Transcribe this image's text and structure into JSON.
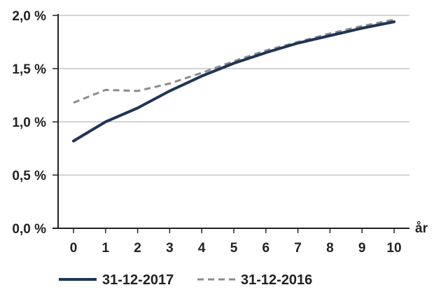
{
  "chart_data": {
    "type": "line",
    "x": [
      0,
      1,
      2,
      3,
      4,
      5,
      6,
      7,
      8,
      9,
      10
    ],
    "xlabel": "år",
    "ylim": [
      0,
      2.0
    ],
    "xlim": [
      0,
      10
    ],
    "y_tick_labels": [
      "0,0 %",
      "0,5 %",
      "1,0 %",
      "1,5 %",
      "2,0 %"
    ],
    "x_tick_labels": [
      "0",
      "1",
      "2",
      "3",
      "4",
      "5",
      "6",
      "7",
      "8",
      "9",
      "10"
    ],
    "grid": true,
    "legend_position": "bottom",
    "series": [
      {
        "name": "31-12-2017",
        "values": [
          0.82,
          1.0,
          1.13,
          1.29,
          1.43,
          1.55,
          1.65,
          1.74,
          1.81,
          1.88,
          1.94
        ],
        "color": "#1f3557",
        "style": "solid"
      },
      {
        "name": "31-12-2016",
        "values": [
          1.18,
          1.3,
          1.29,
          1.36,
          1.46,
          1.57,
          1.67,
          1.75,
          1.83,
          1.9,
          1.96
        ],
        "color": "#8c8c8c",
        "style": "dashed"
      }
    ]
  }
}
